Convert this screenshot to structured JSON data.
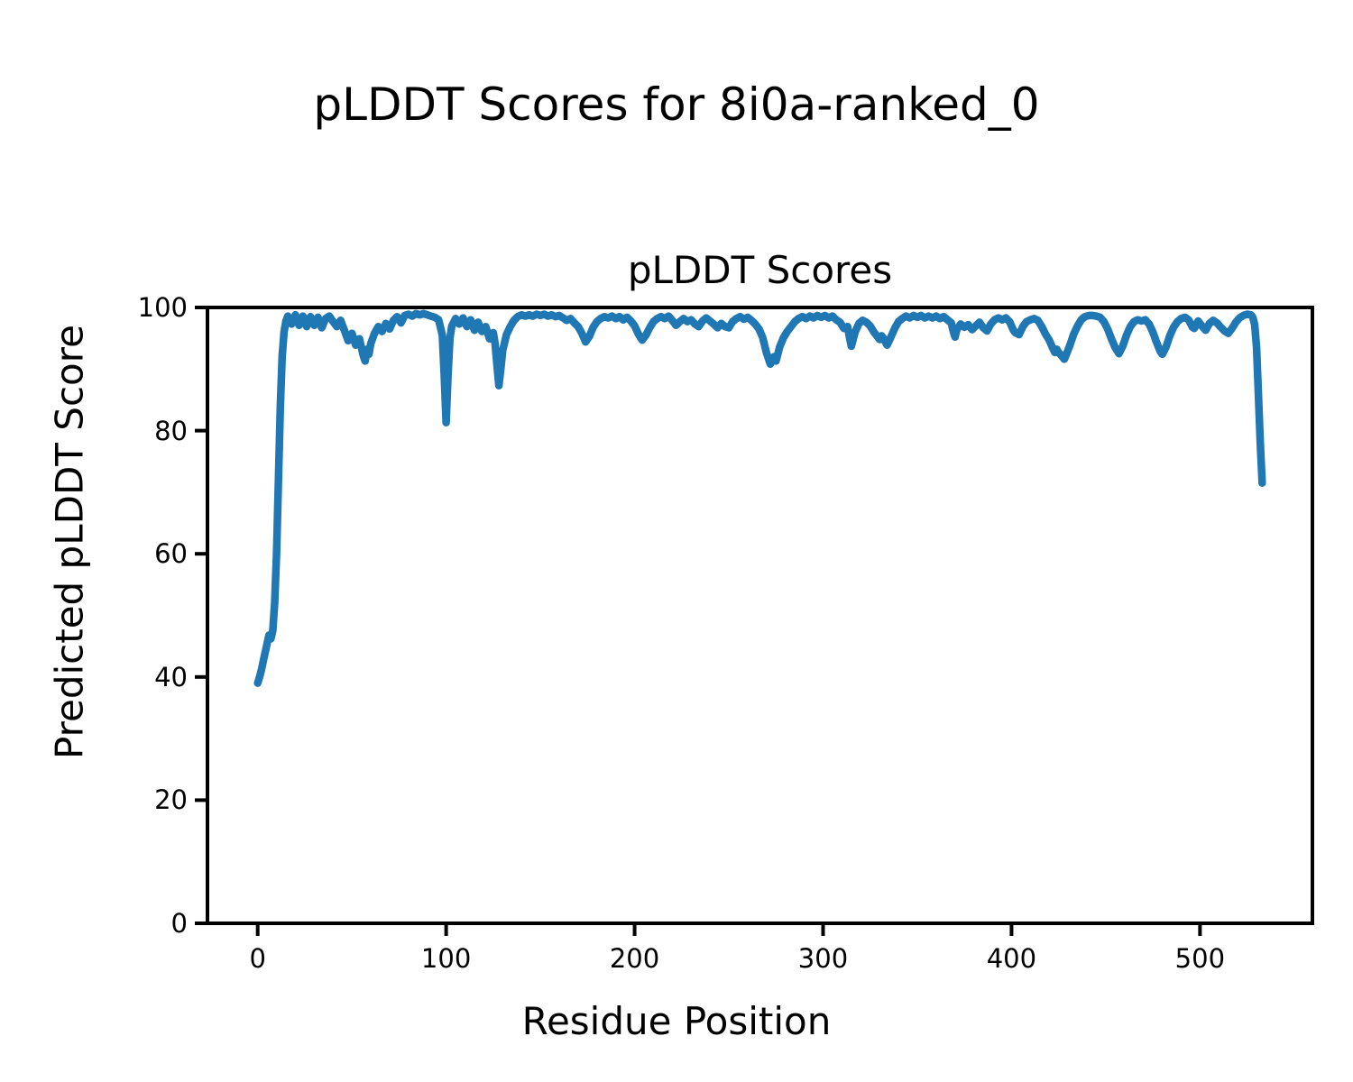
{
  "figure": {
    "suptitle": "pLDDT Scores for 8i0a-ranked_0"
  },
  "chart_data": {
    "type": "line",
    "title": "pLDDT Scores",
    "xlabel": "Residue Position",
    "ylabel": "Predicted pLDDT Score",
    "x_ticks": [
      0,
      100,
      200,
      300,
      400,
      500
    ],
    "y_ticks": [
      0,
      20,
      40,
      60,
      80,
      100
    ],
    "xlim": [
      -26.65,
      559.65
    ],
    "ylim": [
      0,
      100
    ],
    "grid": false,
    "legend": null,
    "line_color": "#1f77b4",
    "axis_color": "#000000",
    "series": [
      {
        "name": "pLDDT",
        "points": [
          [
            0,
            39
          ],
          [
            1,
            40
          ],
          [
            2,
            41.2
          ],
          [
            3,
            42.6
          ],
          [
            4,
            44
          ],
          [
            5,
            45.4
          ],
          [
            6,
            46.8
          ],
          [
            7,
            46.2
          ],
          [
            8,
            47.5
          ],
          [
            9,
            52
          ],
          [
            10,
            60
          ],
          [
            11,
            72
          ],
          [
            12,
            84
          ],
          [
            13,
            92
          ],
          [
            14,
            96
          ],
          [
            15,
            97.8
          ],
          [
            16,
            98.6
          ],
          [
            18,
            97.3
          ],
          [
            20,
            98.8
          ],
          [
            22,
            97.1
          ],
          [
            24,
            98.6
          ],
          [
            26,
            96.9
          ],
          [
            28,
            98.5
          ],
          [
            30,
            97.1
          ],
          [
            32,
            98.4
          ],
          [
            34,
            96.7
          ],
          [
            36,
            98.2
          ],
          [
            38,
            98.6
          ],
          [
            40,
            97.7
          ],
          [
            42,
            96.9
          ],
          [
            44,
            97.9
          ],
          [
            46,
            96.3
          ],
          [
            48,
            94.6
          ],
          [
            50,
            95.8
          ],
          [
            52,
            93.9
          ],
          [
            54,
            94.9
          ],
          [
            56,
            92.2
          ],
          [
            57,
            91.3
          ],
          [
            58,
            93.2
          ],
          [
            59,
            92.4
          ],
          [
            60,
            94.1
          ],
          [
            62,
            95.8
          ],
          [
            64,
            96.9
          ],
          [
            66,
            96.1
          ],
          [
            68,
            97.4
          ],
          [
            70,
            96.5
          ],
          [
            72,
            97.9
          ],
          [
            74,
            98.5
          ],
          [
            76,
            97.5
          ],
          [
            78,
            98.7
          ],
          [
            80,
            98.9
          ],
          [
            82,
            98.6
          ],
          [
            84,
            99
          ],
          [
            86,
            98.8
          ],
          [
            88,
            99
          ],
          [
            90,
            98.8
          ],
          [
            92,
            98.6
          ],
          [
            94,
            98.4
          ],
          [
            96,
            98
          ],
          [
            98,
            95.5
          ],
          [
            99,
            89
          ],
          [
            100,
            81.3
          ],
          [
            101,
            89
          ],
          [
            102,
            95
          ],
          [
            103,
            97
          ],
          [
            105,
            98.2
          ],
          [
            107,
            97.3
          ],
          [
            109,
            98.3
          ],
          [
            111,
            96.9
          ],
          [
            113,
            98
          ],
          [
            115,
            96.3
          ],
          [
            117,
            97.6
          ],
          [
            119,
            96.1
          ],
          [
            121,
            96.9
          ],
          [
            123,
            94.9
          ],
          [
            125,
            95.9
          ],
          [
            126,
            94.1
          ],
          [
            127,
            90.6
          ],
          [
            128,
            87.3
          ],
          [
            129,
            90
          ],
          [
            130,
            93
          ],
          [
            132,
            95.6
          ],
          [
            134,
            96.9
          ],
          [
            136,
            97.9
          ],
          [
            138,
            98.5
          ],
          [
            140,
            98.8
          ],
          [
            142,
            98.6
          ],
          [
            144,
            98.8
          ],
          [
            146,
            98.6
          ],
          [
            148,
            98.9
          ],
          [
            150,
            98.7
          ],
          [
            152,
            98.9
          ],
          [
            154,
            98.6
          ],
          [
            156,
            98.8
          ],
          [
            158,
            98.5
          ],
          [
            160,
            98.7
          ],
          [
            162,
            98.3
          ],
          [
            164,
            97.9
          ],
          [
            166,
            98.2
          ],
          [
            168,
            97.5
          ],
          [
            170,
            96.9
          ],
          [
            172,
            95.8
          ],
          [
            174,
            94.4
          ],
          [
            176,
            95.3
          ],
          [
            178,
            96.8
          ],
          [
            180,
            97.7
          ],
          [
            182,
            98.2
          ],
          [
            184,
            98.5
          ],
          [
            186,
            98.3
          ],
          [
            188,
            98.6
          ],
          [
            190,
            98.2
          ],
          [
            192,
            98.5
          ],
          [
            194,
            98
          ],
          [
            196,
            98.4
          ],
          [
            198,
            97.8
          ],
          [
            200,
            97
          ],
          [
            202,
            95.7
          ],
          [
            204,
            94.7
          ],
          [
            206,
            95.5
          ],
          [
            208,
            96.7
          ],
          [
            210,
            97.7
          ],
          [
            212,
            98.2
          ],
          [
            214,
            98.5
          ],
          [
            216,
            98.2
          ],
          [
            218,
            98.6
          ],
          [
            220,
            97.9
          ],
          [
            222,
            97.1
          ],
          [
            224,
            97.7
          ],
          [
            226,
            98.2
          ],
          [
            228,
            97.7
          ],
          [
            230,
            98
          ],
          [
            232,
            97.3
          ],
          [
            234,
            96.9
          ],
          [
            236,
            97.8
          ],
          [
            238,
            98.3
          ],
          [
            240,
            97.8
          ],
          [
            242,
            97.3
          ],
          [
            244,
            96.7
          ],
          [
            246,
            97.4
          ],
          [
            248,
            96.9
          ],
          [
            250,
            96.7
          ],
          [
            252,
            97.7
          ],
          [
            254,
            98.2
          ],
          [
            256,
            98.5
          ],
          [
            258,
            98.1
          ],
          [
            260,
            98.4
          ],
          [
            262,
            97.9
          ],
          [
            264,
            97.3
          ],
          [
            266,
            96.5
          ],
          [
            268,
            95.1
          ],
          [
            270,
            92.6
          ],
          [
            272,
            90.8
          ],
          [
            274,
            92
          ],
          [
            275,
            91.3
          ],
          [
            277,
            93.6
          ],
          [
            279,
            95.1
          ],
          [
            281,
            96.1
          ],
          [
            283,
            96.9
          ],
          [
            285,
            97.7
          ],
          [
            287,
            98.2
          ],
          [
            289,
            98.5
          ],
          [
            291,
            98.2
          ],
          [
            293,
            98.6
          ],
          [
            295,
            98.3
          ],
          [
            297,
            98.7
          ],
          [
            299,
            98.4
          ],
          [
            301,
            98.7
          ],
          [
            303,
            98.3
          ],
          [
            305,
            98.6
          ],
          [
            307,
            98
          ],
          [
            309,
            97.6
          ],
          [
            311,
            96.6
          ],
          [
            313,
            96.9
          ],
          [
            314,
            95.2
          ],
          [
            315,
            93.7
          ],
          [
            317,
            96
          ],
          [
            319,
            97.4
          ],
          [
            321,
            97.9
          ],
          [
            323,
            97.6
          ],
          [
            325,
            97
          ],
          [
            327,
            96
          ],
          [
            329,
            95.2
          ],
          [
            330,
            94.8
          ],
          [
            331,
            95.4
          ],
          [
            332,
            95
          ],
          [
            334,
            93.9
          ],
          [
            336,
            95.2
          ],
          [
            338,
            96.6
          ],
          [
            340,
            97.7
          ],
          [
            342,
            98.2
          ],
          [
            344,
            98.6
          ],
          [
            346,
            98.3
          ],
          [
            348,
            98.7
          ],
          [
            350,
            98.4
          ],
          [
            352,
            98.7
          ],
          [
            354,
            98.3
          ],
          [
            356,
            98.6
          ],
          [
            358,
            98.3
          ],
          [
            360,
            98.6
          ],
          [
            362,
            98.2
          ],
          [
            364,
            98.5
          ],
          [
            366,
            98
          ],
          [
            368,
            97.5
          ],
          [
            369,
            96.2
          ],
          [
            370,
            95.2
          ],
          [
            371,
            96.4
          ],
          [
            373,
            97.3
          ],
          [
            375,
            96.8
          ],
          [
            377,
            97.2
          ],
          [
            379,
            96.4
          ],
          [
            381,
            97
          ],
          [
            383,
            97.6
          ],
          [
            385,
            96.7
          ],
          [
            387,
            96.2
          ],
          [
            389,
            97.3
          ],
          [
            391,
            98
          ],
          [
            393,
            98.3
          ],
          [
            395,
            98
          ],
          [
            397,
            98.3
          ],
          [
            399,
            97.7
          ],
          [
            401,
            96.3
          ],
          [
            402,
            95.9
          ],
          [
            404,
            95.6
          ],
          [
            406,
            96.9
          ],
          [
            408,
            97.7
          ],
          [
            410,
            98
          ],
          [
            412,
            98.2
          ],
          [
            414,
            97.9
          ],
          [
            416,
            96.9
          ],
          [
            418,
            95.7
          ],
          [
            420,
            94.7
          ],
          [
            422,
            93.3
          ],
          [
            423,
            92.7
          ],
          [
            424,
            93.2
          ],
          [
            425,
            92.7
          ],
          [
            427,
            92
          ],
          [
            428,
            91.6
          ],
          [
            429,
            92.3
          ],
          [
            431,
            93.9
          ],
          [
            433,
            95.7
          ],
          [
            435,
            97
          ],
          [
            437,
            98
          ],
          [
            439,
            98.5
          ],
          [
            441,
            98.7
          ],
          [
            443,
            98.7
          ],
          [
            445,
            98.6
          ],
          [
            447,
            98.4
          ],
          [
            449,
            97.7
          ],
          [
            451,
            96.5
          ],
          [
            453,
            94.9
          ],
          [
            455,
            93.5
          ],
          [
            457,
            92.5
          ],
          [
            459,
            93.7
          ],
          [
            461,
            95.5
          ],
          [
            463,
            96.9
          ],
          [
            465,
            97.7
          ],
          [
            467,
            98
          ],
          [
            469,
            97.8
          ],
          [
            471,
            98
          ],
          [
            473,
            97.3
          ],
          [
            475,
            96
          ],
          [
            477,
            94.3
          ],
          [
            479,
            92.8
          ],
          [
            480,
            92.4
          ],
          [
            482,
            93.6
          ],
          [
            484,
            95.4
          ],
          [
            486,
            96.8
          ],
          [
            488,
            97.7
          ],
          [
            490,
            98.2
          ],
          [
            492,
            98.4
          ],
          [
            494,
            98
          ],
          [
            496,
            96.8
          ],
          [
            497,
            96.6
          ],
          [
            499,
            97.8
          ],
          [
            501,
            97
          ],
          [
            503,
            96.3
          ],
          [
            505,
            97.4
          ],
          [
            507,
            97.9
          ],
          [
            509,
            97.5
          ],
          [
            511,
            96.8
          ],
          [
            513,
            96.2
          ],
          [
            515,
            95.8
          ],
          [
            517,
            96.6
          ],
          [
            519,
            97.6
          ],
          [
            521,
            98.3
          ],
          [
            523,
            98.7
          ],
          [
            525,
            98.9
          ],
          [
            527,
            98.8
          ],
          [
            528,
            98.4
          ],
          [
            529,
            97.2
          ],
          [
            530,
            93.5
          ],
          [
            531,
            86
          ],
          [
            532,
            78
          ],
          [
            533,
            71.5
          ]
        ]
      }
    ]
  }
}
